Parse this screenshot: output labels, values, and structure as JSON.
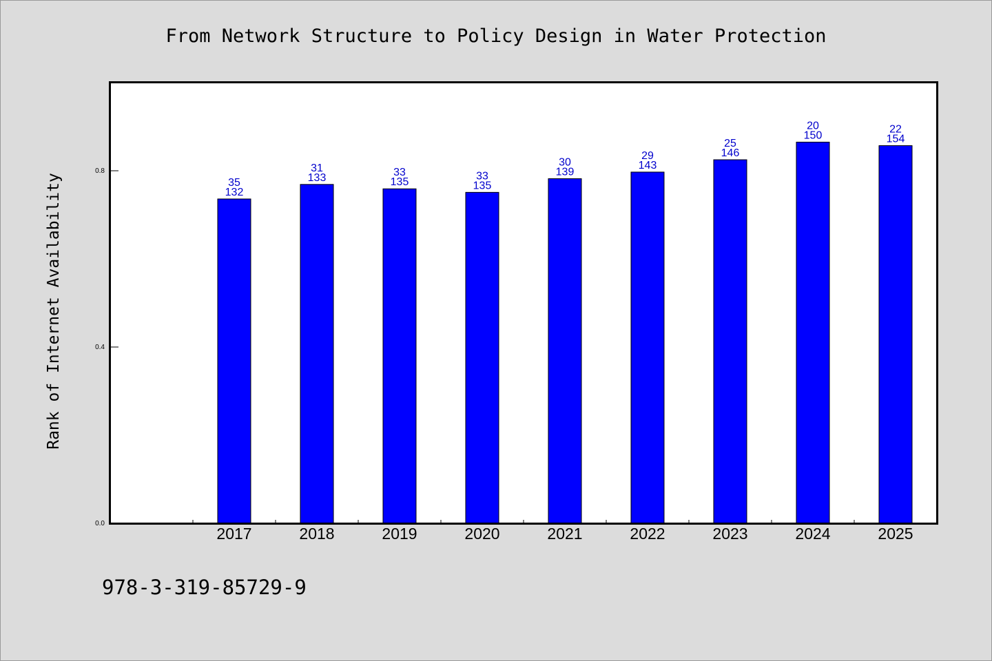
{
  "chart_data": {
    "type": "bar",
    "title": "From Network Structure to Policy Design in Water Protection",
    "xlabel": "",
    "ylabel": "Rank of Internet Availability",
    "categories": [
      "2017",
      "2018",
      "2019",
      "2020",
      "2021",
      "2022",
      "2023",
      "2024",
      "2025"
    ],
    "values": [
      0.736,
      0.769,
      0.759,
      0.751,
      0.782,
      0.797,
      0.825,
      0.865,
      0.857
    ],
    "labels_top": [
      "35",
      "31",
      "33",
      "33",
      "30",
      "29",
      "25",
      "20",
      "22"
    ],
    "labels_bottom": [
      "132",
      "133",
      "135",
      "135",
      "139",
      "143",
      "146",
      "150",
      "154"
    ],
    "yticks": [
      "0.0",
      "0.4",
      "0.8"
    ],
    "ytick_values": [
      0.0,
      0.4,
      0.8
    ],
    "ylim": [
      0,
      1.0
    ],
    "grid": false,
    "legend": "none",
    "bar_color": "#0000ff",
    "label_color": "#0000cc",
    "background_color": "#dcdcdc"
  },
  "footer": {
    "isbn": "978-3-319-85729-9"
  }
}
